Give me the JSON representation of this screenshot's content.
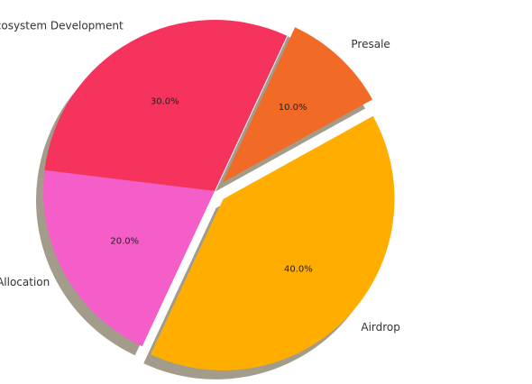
{
  "chart_data": {
    "type": "pie",
    "title": "",
    "categories": [
      "Ecosystem Development",
      "Team Allocation",
      "Airdrop",
      "Presale"
    ],
    "values": [
      30.0,
      20.0,
      40.0,
      10.0
    ],
    "value_labels": [
      "30.0%",
      "20.0%",
      "40.0%",
      "10.0%"
    ],
    "colors": [
      "#f5335c",
      "#f55dc8",
      "#ffae00",
      "#f26b26"
    ],
    "exploded": [
      "Airdrop",
      "Presale"
    ],
    "shadow": true,
    "start_angle_deg": 65,
    "direction": "counterclockwise",
    "legend": "none"
  }
}
